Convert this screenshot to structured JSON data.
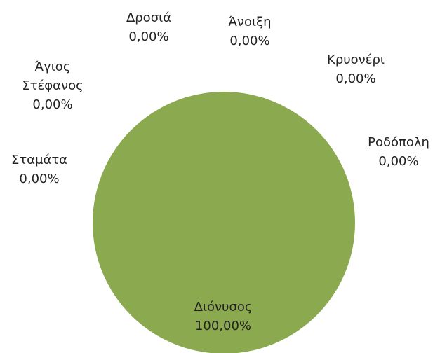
{
  "chart_data": {
    "type": "pie",
    "categories": [
      "Διόνυσος",
      "Σταμάτα",
      "Άγιος Στέφανος",
      "Δροσιά",
      "Άνοιξη",
      "Κρυονέρι",
      "Ροδόπολη"
    ],
    "values": [
      100,
      0,
      0,
      0,
      0,
      0,
      0
    ],
    "value_labels": [
      "100,00%",
      "0,00%",
      "0,00%",
      "0,00%",
      "0,00%",
      "0,00%",
      "0,00%"
    ],
    "color": "#8ba94f"
  }
}
